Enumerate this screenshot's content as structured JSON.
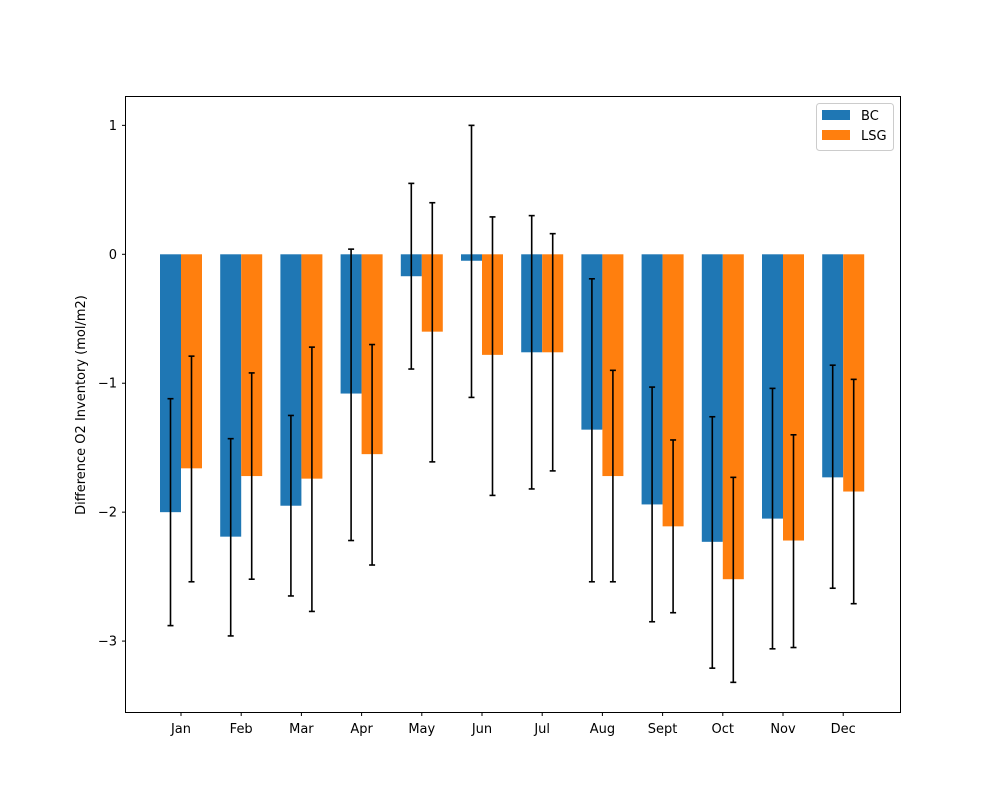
{
  "chart_data": {
    "type": "bar",
    "title": "",
    "xlabel": "",
    "ylabel": "Difference O2 Inventory (mol/m2)",
    "ylim": [
      -3.55,
      1.22
    ],
    "yticks": [
      1,
      0,
      -1,
      -2,
      -3
    ],
    "ytick_labels": [
      "1",
      "0",
      "−1",
      "−2",
      "−3"
    ],
    "categories": [
      "Jan",
      "Feb",
      "Mar",
      "Apr",
      "May",
      "Jun",
      "Jul",
      "Aug",
      "Sept",
      "Oct",
      "Nov",
      "Dec"
    ],
    "legend_position": "top-right",
    "grid": false,
    "series": [
      {
        "name": "BC",
        "color": "#1f77b4",
        "values": [
          -2.0,
          -2.19,
          -1.95,
          -1.08,
          -0.17,
          -0.05,
          -0.76,
          -1.36,
          -1.94,
          -2.23,
          -2.05,
          -1.73
        ],
        "err_low": [
          -2.88,
          -2.96,
          -2.65,
          -2.22,
          -0.89,
          -1.11,
          -1.82,
          -2.54,
          -2.85,
          -3.21,
          -3.06,
          -2.59
        ],
        "err_high": [
          -1.12,
          -1.43,
          -1.25,
          0.04,
          0.55,
          1.0,
          0.3,
          -0.19,
          -1.03,
          -1.26,
          -1.04,
          -0.86
        ]
      },
      {
        "name": "LSG",
        "color": "#ff7f0e",
        "values": [
          -1.66,
          -1.72,
          -1.74,
          -1.55,
          -0.6,
          -0.78,
          -0.76,
          -1.72,
          -2.11,
          -2.52,
          -2.22,
          -1.84
        ],
        "err_low": [
          -2.54,
          -2.52,
          -2.77,
          -2.41,
          -1.61,
          -1.87,
          -1.68,
          -2.54,
          -2.78,
          -3.32,
          -3.05,
          -2.71
        ],
        "err_high": [
          -0.79,
          -0.92,
          -0.72,
          -0.7,
          0.4,
          0.29,
          0.16,
          -0.9,
          -1.44,
          -1.73,
          -1.4,
          -0.97
        ]
      }
    ]
  }
}
